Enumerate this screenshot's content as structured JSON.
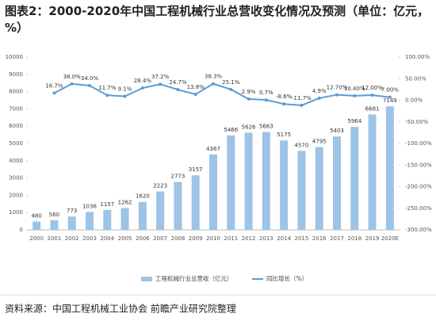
{
  "chart_data": {
    "type": "bar",
    "title": "图表2：2000-2020年中国工程机械行业总营收变化情况及预测（单位：亿元，%）",
    "categories": [
      "2000",
      "2001",
      "2002",
      "2003",
      "2004",
      "2005",
      "2006",
      "2007",
      "2008",
      "2009",
      "2010",
      "2011",
      "2012",
      "2013",
      "2014",
      "2015",
      "2016",
      "2017",
      "2018",
      "2019",
      "2020E"
    ],
    "series": [
      {
        "name": "工程机械行业总营收（亿元）",
        "color": "#9dc3e6",
        "type": "bar",
        "values": [
          480,
          560,
          773,
          1036,
          1157,
          1262,
          1620,
          2223,
          2773,
          3157,
          4367,
          5466,
          5626,
          5663,
          5175,
          4570,
          4795,
          5403,
          5964,
          6681,
          7149
        ]
      },
      {
        "name": "同比增长（%）",
        "color": "#5b9bd5",
        "type": "line",
        "axis": "y2",
        "values": [
          null,
          16.7,
          38.0,
          34.0,
          11.7,
          9.1,
          28.4,
          37.2,
          24.7,
          13.8,
          38.3,
          25.1,
          2.9,
          0.7,
          -8.6,
          -11.7,
          4.9,
          12.7,
          10.4,
          12.0,
          7.0
        ],
        "value_labels": [
          null,
          "16.7%",
          "38.0%",
          "34.0%",
          "11.7%",
          "9.1%",
          "28.4%",
          "37.2%",
          "24.7%",
          "13.8%",
          "38.3%",
          "25.1%",
          "2.9%",
          "0.7%",
          "-8.6%",
          "-11.7%",
          "4.9%",
          "12.70%",
          "10.40%",
          "12.00%",
          "7.00%"
        ]
      }
    ],
    "ylim": [
      0,
      10000
    ],
    "yticks": [
      0,
      1000,
      2000,
      3000,
      4000,
      5000,
      6000,
      7000,
      8000,
      9000,
      10000
    ],
    "y2lim": [
      -300,
      100
    ],
    "y2ticks": [
      {
        "value": 100,
        "label": "100.00%"
      },
      {
        "value": 50,
        "label": "50.00%"
      },
      {
        "value": 0,
        "label": "0.00%"
      },
      {
        "value": -50,
        "label": "-50.00%"
      },
      {
        "value": -100,
        "label": "-100.00%"
      },
      {
        "value": -150,
        "label": "-150.00%"
      },
      {
        "value": -200,
        "label": "-200.00%"
      },
      {
        "value": -250,
        "label": "-250.00%"
      },
      {
        "value": -300,
        "label": "-300.00%"
      }
    ],
    "source": "资料来源：中国工程机械工业协会 前瞻产业研究院整理"
  }
}
